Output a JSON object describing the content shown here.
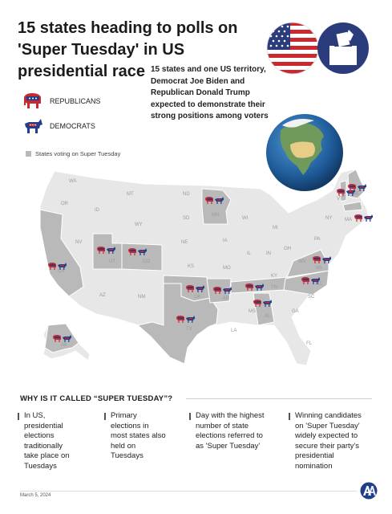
{
  "header": {
    "title": "15 states heading to polls on 'Super Tuesday' in US presidential race",
    "subtitle": "15 states and one US territory, Democrat Joe Biden and Republican Donald Trump expected to demonstrate their strong positions among voters"
  },
  "legend": {
    "republicans": "REPUBLICANS",
    "democrats": "DEMOCRATS",
    "states_voting": "States voting on Super Tuesday"
  },
  "colors": {
    "republican_red": "#c8282e",
    "democrat_blue": "#1f3e8c",
    "voting_state_gray": "#b9b9b9",
    "other_state_gray": "#e7e7e7"
  },
  "map": {
    "state_labels": {
      "WA": "WA",
      "OR": "OR",
      "ID": "ID",
      "MT": "MT",
      "WY": "WY",
      "NV": "NV",
      "CA": "CA",
      "UT": "UT",
      "CO": "CO",
      "AZ": "AZ",
      "NM": "NM",
      "ND": "ND",
      "SD": "SD",
      "NE": "NE",
      "KS": "KS",
      "OK": "OK",
      "TX": "TX",
      "MN": "MN",
      "IA": "IA",
      "MO": "MO",
      "AR": "AR",
      "LA": "LA",
      "WI": "WI",
      "IL": "IL",
      "MI": "MI",
      "IN": "IN",
      "OH": "OH",
      "KY": "KY",
      "TN": "TN",
      "MS": "MS",
      "AL": "AL",
      "GA": "GA",
      "FL": "FL",
      "SC": "SC",
      "NC": "NC",
      "VA": "VA",
      "WV": "WV",
      "PA": "PA",
      "NY": "NY",
      "VT": "VT",
      "ME": "ME",
      "MA": "MA",
      "AK": "AK"
    }
  },
  "section": {
    "title": "WHY IS IT CALLED “SUPER TUESDAY”?",
    "reasons": [
      {
        "lines": [
          "In US,",
          "presidential",
          "elections",
          "traditionally",
          "take place on",
          "Tuesdays"
        ]
      },
      {
        "lines": [
          "Primary",
          "elections in",
          "most states also",
          "held on",
          "Tuesdays"
        ]
      },
      {
        "lines": [
          "Day with the highest",
          "number of state",
          "elections referred to",
          "as 'Super Tuesday'"
        ]
      },
      {
        "lines": [
          "Winning candidates",
          "on 'Super Tuesday'",
          "widely expected to",
          "secure their party's",
          "presidential",
          "nomination"
        ]
      }
    ]
  },
  "footer": {
    "date": "March 5, 2024",
    "logo_icon": "aa-logo-icon"
  },
  "icons": {
    "flag": "us-flag-icon",
    "ballot": "ballot-box-icon",
    "globe": "globe-icon",
    "elephant": "elephant-icon",
    "donkey": "donkey-icon"
  }
}
